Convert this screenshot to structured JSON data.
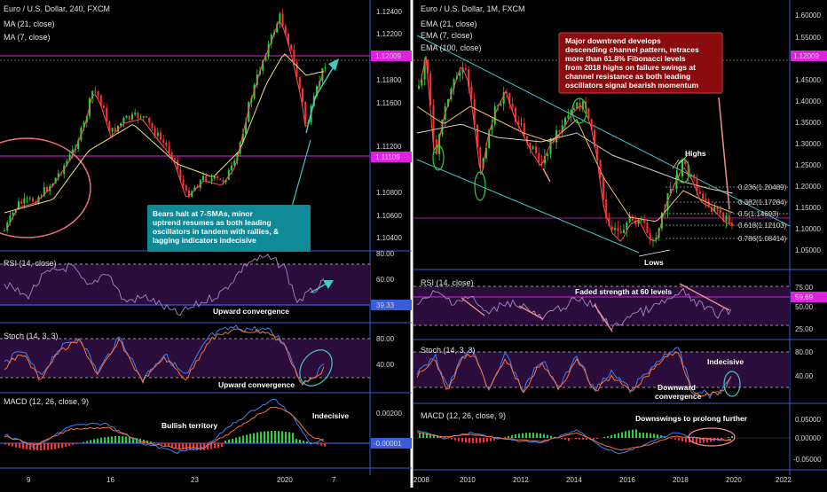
{
  "left": {
    "title": "Euro / U.S. Dollar, 240, FXCM",
    "ma21": "MA (21, close)",
    "ma7": "MA (7, close)",
    "price_ticks": [
      "1.12400",
      "1.12200",
      "1.11800",
      "1.11600",
      "1.11200",
      "1.10800",
      "1.10600",
      "1.10400"
    ],
    "line_upper": "1.12009",
    "line_lower": "1.11109",
    "callout": [
      "Bears halt at 7-SMAs, minor",
      "uptrend resumes as both leading",
      "oscillators in tandem with rallies, &",
      "lagging indicators indecisive"
    ],
    "rsi": {
      "title": "RSI (14, close)",
      "ticks": [
        "80.00",
        "60.00"
      ],
      "value": "39.33",
      "note": "Upward convergence"
    },
    "stoch": {
      "title": "Stoch (14, 3, 3)",
      "ticks": [
        "80.00",
        "40.00"
      ],
      "note": "Upward convergence"
    },
    "macd": {
      "title": "MACD (12, 26, close, 9)",
      "ticks": [
        "0.00200"
      ],
      "value": "-0.00001",
      "note1": "Bullish territory",
      "note2": "Indecisive"
    },
    "x_ticks": [
      "9",
      "16",
      "23",
      "2020",
      "7"
    ]
  },
  "right": {
    "title": "Euro / U.S. Dollar, 1M, FXCM",
    "ema21": "EMA (21, close)",
    "ema7": "EMA (7, close)",
    "ema100": "EMA (100, close)",
    "price_ticks": [
      "1.60000",
      "1.55000",
      "1.50000",
      "1.45000",
      "1.40000",
      "1.35000",
      "1.30000",
      "1.25000",
      "1.20000",
      "1.15000",
      "1.10000",
      "1.05000"
    ],
    "price_box": "1.12009",
    "callout": [
      "Major downtrend develops",
      "descending channel pattern, retraces",
      "more than 61.8% Fibonacci levels",
      "from 2018 highs on failure swings at",
      "channel resistance as both leading",
      "oscillators signal bearish momentum"
    ],
    "fib": [
      "0.236(1.20489)",
      "0.382(1.17284)",
      "0.5(1.14693)",
      "0.618(1.12103)",
      "0.786(1.08414)"
    ],
    "highs": "Highs",
    "lows": "Lows",
    "rsi": {
      "title": "RSI (14, close)",
      "ticks": [
        "75.00",
        "50.00",
        "25.00"
      ],
      "value": "59.69",
      "note": "Faded strength at 60 levels"
    },
    "stoch": {
      "title": "Stoch (14, 3, 3)",
      "ticks": [
        "80.00",
        "40.00"
      ],
      "note1": "Indecisive",
      "note2": "Downward",
      "note3": "convergence"
    },
    "macd": {
      "title": "MACD (12, 26, close, 9)",
      "ticks": [
        "0.05000",
        "0.00000",
        "-0.05000"
      ],
      "note": "Downswings to prolong further"
    },
    "x_ticks": [
      "2008",
      "2010",
      "2012",
      "2014",
      "2016",
      "2018",
      "2020",
      "2022"
    ]
  },
  "colors": {
    "magenta": "#e020e0",
    "teal": "#40c8c8",
    "red": "#ff3030",
    "green": "#27d43a",
    "callout_bg": "#8b0c0c",
    "callout_teal": "#0f8a96"
  }
}
